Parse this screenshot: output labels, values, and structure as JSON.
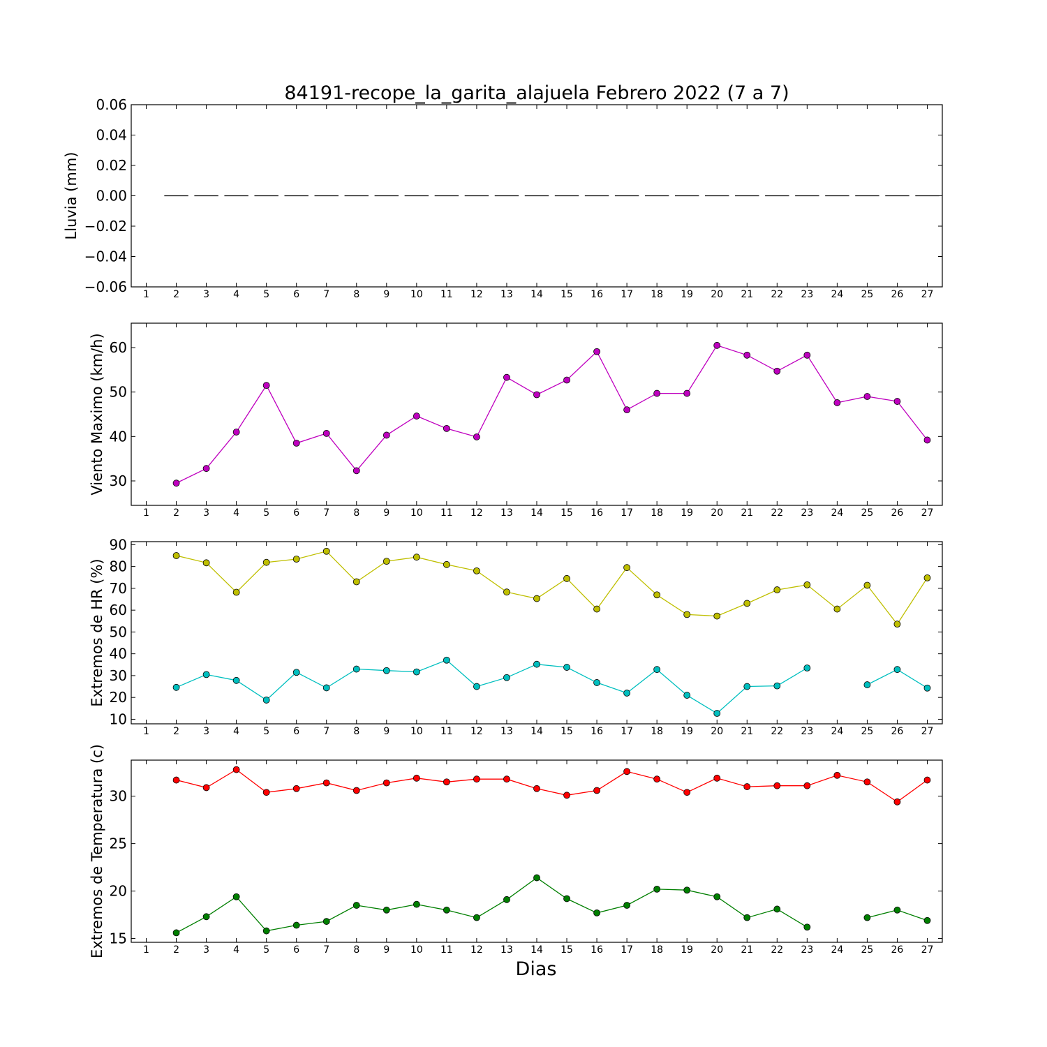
{
  "title": "84191-recope_la_garita_alajuela Febrero 2022  (7 a 7)",
  "xlabel": "Dias",
  "x_ticks": [
    "1",
    "2",
    "3",
    "4",
    "5",
    "6",
    "7",
    "8",
    "9",
    "10",
    "11",
    "12",
    "13",
    "14",
    "15",
    "16",
    "17",
    "18",
    "19",
    "20",
    "21",
    "22",
    "23",
    "24",
    "25",
    "26",
    "27"
  ],
  "chart_data": [
    {
      "type": "bar",
      "ylabel": "Lluvia (mm)",
      "xlim": [
        0.5,
        27.5
      ],
      "ylim": [
        -0.06,
        0.06
      ],
      "yticks": [
        "0.06",
        "0.04",
        "0.02",
        "0.00",
        "−0.02",
        "−0.04",
        "−0.06"
      ],
      "ytick_values": [
        0.06,
        0.04,
        0.02,
        0.0,
        -0.02,
        -0.04,
        -0.06
      ],
      "series": [
        {
          "color": "#000000",
          "x": [
            2,
            3,
            4,
            5,
            6,
            7,
            8,
            9,
            10,
            11,
            12,
            13,
            14,
            15,
            16,
            17,
            18,
            19,
            20,
            21,
            22,
            23,
            24,
            25,
            26,
            27
          ],
          "values": [
            0,
            0,
            0,
            0,
            0,
            0,
            0,
            0,
            0,
            0,
            0,
            0,
            0,
            0,
            0,
            0,
            0,
            0,
            0,
            0,
            0,
            0,
            0,
            0,
            0,
            0
          ]
        }
      ]
    },
    {
      "type": "line",
      "ylabel": "Viento Maximo (km/h)",
      "xlim": [
        0.5,
        27.5
      ],
      "ylim": [
        24.5,
        65.5
      ],
      "yticks": [
        "60",
        "50",
        "40",
        "30"
      ],
      "ytick_values": [
        60,
        50,
        40,
        30
      ],
      "series": [
        {
          "color": "#bf00bf",
          "x": [
            2,
            3,
            4,
            5,
            6,
            7,
            8,
            9,
            10,
            11,
            12,
            13,
            14,
            15,
            16,
            17,
            18,
            19,
            20,
            21,
            22,
            23,
            24,
            25,
            26,
            27
          ],
          "values": [
            29.5,
            32.8,
            41.0,
            51.5,
            38.5,
            40.7,
            32.3,
            40.3,
            44.6,
            41.8,
            39.9,
            53.3,
            49.4,
            52.7,
            59.1,
            46.0,
            49.7,
            49.7,
            60.5,
            58.3,
            54.7,
            58.3,
            47.6,
            49.0,
            47.9,
            39.2
          ]
        }
      ]
    },
    {
      "type": "line",
      "ylabel": "Extremos de HR (%)",
      "xlim": [
        0.5,
        27.5
      ],
      "ylim": [
        7.9,
        91.4
      ],
      "yticks": [
        "90",
        "80",
        "70",
        "60",
        "50",
        "40",
        "30",
        "20",
        "10"
      ],
      "ytick_values": [
        90,
        80,
        70,
        60,
        50,
        40,
        30,
        20,
        10
      ],
      "series": [
        {
          "color": "#bfbf00",
          "x": [
            2,
            3,
            4,
            5,
            6,
            7,
            8,
            9,
            10,
            11,
            12,
            13,
            14,
            15,
            16,
            17,
            18,
            19,
            20,
            21,
            22,
            23,
            24,
            25,
            26,
            27
          ],
          "values": [
            85,
            81.7,
            68.2,
            81.9,
            83.4,
            87,
            73,
            82.4,
            84.3,
            80.9,
            78,
            68.3,
            65.3,
            74.5,
            60.5,
            79.5,
            67,
            58,
            57.3,
            63.1,
            69.3,
            71.6,
            60.5,
            71.4,
            53.6,
            74.8
          ]
        },
        {
          "color": "#00bfbf",
          "x": [
            2,
            3,
            4,
            5,
            6,
            7,
            8,
            9,
            10,
            11,
            12,
            13,
            14,
            15,
            16,
            17,
            18,
            19,
            20,
            21,
            22,
            23,
            24,
            25,
            26,
            27
          ],
          "values": [
            24.6,
            30.5,
            27.8,
            18.8,
            31.5,
            24.4,
            33,
            32.3,
            31.7,
            37.1,
            25,
            29.1,
            35.2,
            33.8,
            26.8,
            22,
            32.8,
            21,
            12.7,
            25,
            25.3,
            33.5,
            null,
            25.8,
            32.8,
            24.3
          ]
        }
      ]
    },
    {
      "type": "line",
      "ylabel": "Extremos de Temperatura (c)",
      "xlim": [
        0.5,
        27.5
      ],
      "ylim": [
        14.6,
        33.8
      ],
      "yticks": [
        "30",
        "25",
        "20",
        "15"
      ],
      "ytick_values": [
        30,
        25,
        20,
        15
      ],
      "series": [
        {
          "color": "#ff0000",
          "x": [
            2,
            3,
            4,
            5,
            6,
            7,
            8,
            9,
            10,
            11,
            12,
            13,
            14,
            15,
            16,
            17,
            18,
            19,
            20,
            21,
            22,
            23,
            24,
            25,
            26,
            27
          ],
          "values": [
            31.7,
            30.9,
            32.8,
            30.4,
            30.8,
            31.4,
            30.6,
            31.4,
            31.9,
            31.5,
            31.8,
            31.8,
            30.8,
            30.1,
            30.6,
            32.6,
            31.8,
            30.4,
            31.9,
            31,
            31.1,
            31.1,
            32.2,
            31.5,
            29.4,
            31.7
          ]
        },
        {
          "color": "#007f00",
          "x": [
            2,
            3,
            4,
            5,
            6,
            7,
            8,
            9,
            10,
            11,
            12,
            13,
            14,
            15,
            16,
            17,
            18,
            19,
            20,
            21,
            22,
            23,
            24,
            25,
            26,
            27
          ],
          "values": [
            15.6,
            17.3,
            19.4,
            15.8,
            16.4,
            16.8,
            18.5,
            18,
            18.6,
            18,
            17.2,
            19.1,
            21.4,
            19.2,
            17.7,
            18.5,
            20.2,
            20.1,
            19.4,
            17.2,
            18.1,
            16.2,
            null,
            17.2,
            18,
            16.9
          ]
        }
      ]
    }
  ]
}
